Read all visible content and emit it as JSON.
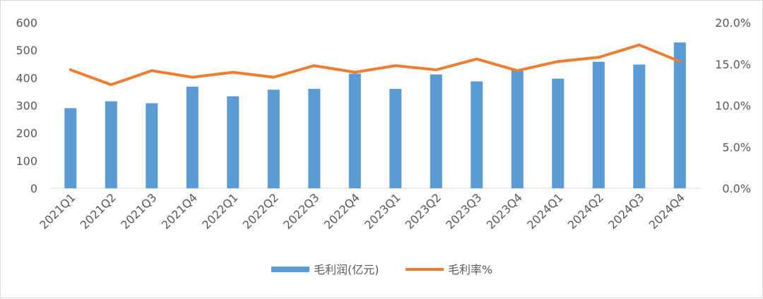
{
  "chart_data": {
    "type": "bar",
    "categories": [
      "2021Q1",
      "2021Q2",
      "2021Q3",
      "2021Q4",
      "2022Q1",
      "2022Q2",
      "2022Q3",
      "2022Q4",
      "2023Q1",
      "2023Q2",
      "2023Q3",
      "2023Q4",
      "2024Q1",
      "2024Q2",
      "2024Q3",
      "2024Q4"
    ],
    "series": [
      {
        "name": "毛利润(亿元)",
        "type": "bar",
        "axis": "left",
        "color": "#5b9bd5",
        "values": [
          290,
          315,
          308,
          368,
          333,
          357,
          360,
          415,
          360,
          412,
          387,
          428,
          397,
          458,
          448,
          528
        ]
      },
      {
        "name": "毛利率%",
        "type": "line",
        "axis": "right",
        "color": "#ed7d31",
        "values": [
          14.3,
          12.5,
          14.2,
          13.4,
          14.0,
          13.4,
          14.8,
          14.0,
          14.8,
          14.3,
          15.6,
          14.2,
          15.3,
          15.8,
          17.3,
          15.3
        ]
      }
    ],
    "y_left": {
      "ylim": [
        0,
        600
      ],
      "ticks": [
        "0",
        "100",
        "200",
        "300",
        "400",
        "500",
        "600"
      ]
    },
    "y_right": {
      "ylim": [
        0,
        20
      ],
      "ticks": [
        "0.0%",
        "5.0%",
        "10.0%",
        "15.0%",
        "20.0%"
      ]
    },
    "grid": false,
    "legend_position": "bottom",
    "title": "",
    "xlabel": "",
    "ylabel": ""
  }
}
